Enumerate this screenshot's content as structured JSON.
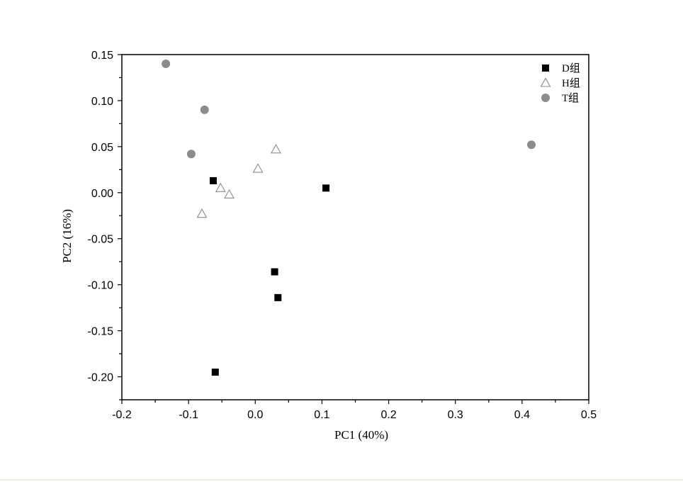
{
  "chart_data": {
    "type": "scatter",
    "xlabel": "PC1 (40%)",
    "ylabel": "PC2 (16%)",
    "xlim": [
      -0.2,
      0.5
    ],
    "ylim": [
      -0.225,
      0.15
    ],
    "x_ticks": [
      -0.2,
      -0.1,
      0.0,
      0.1,
      0.2,
      0.3,
      0.4,
      0.5
    ],
    "x_tick_labels": [
      "-0.2",
      "-0.1",
      "0.0",
      "0.1",
      "0.2",
      "0.3",
      "0.4",
      "0.5"
    ],
    "y_ticks": [
      0.15,
      0.1,
      0.05,
      0.0,
      -0.05,
      -0.1,
      -0.15,
      -0.2
    ],
    "y_tick_labels": [
      "0.15",
      "0.10",
      "0.05",
      "0.00",
      "-0.05",
      "-0.10",
      "-0.15",
      "-0.20"
    ],
    "grid": false,
    "legend_position": "top-right",
    "series": [
      {
        "name": "D组",
        "marker": "filled-square",
        "color": "#000000",
        "points": [
          {
            "x": -0.063,
            "y": 0.013
          },
          {
            "x": 0.106,
            "y": 0.005
          },
          {
            "x": 0.029,
            "y": -0.086
          },
          {
            "x": 0.034,
            "y": -0.114
          },
          {
            "x": -0.06,
            "y": -0.195
          }
        ]
      },
      {
        "name": "H组",
        "marker": "open-triangle",
        "color": "#8c8c8c",
        "points": [
          {
            "x": 0.031,
            "y": 0.047
          },
          {
            "x": 0.004,
            "y": 0.026
          },
          {
            "x": -0.052,
            "y": 0.005
          },
          {
            "x": -0.039,
            "y": -0.002
          },
          {
            "x": -0.08,
            "y": -0.023
          }
        ]
      },
      {
        "name": "T组",
        "marker": "filled-circle",
        "color": "#8c8c8c",
        "points": [
          {
            "x": -0.134,
            "y": 0.14
          },
          {
            "x": -0.076,
            "y": 0.09
          },
          {
            "x": -0.096,
            "y": 0.042
          },
          {
            "x": 0.414,
            "y": 0.052
          }
        ]
      }
    ]
  }
}
